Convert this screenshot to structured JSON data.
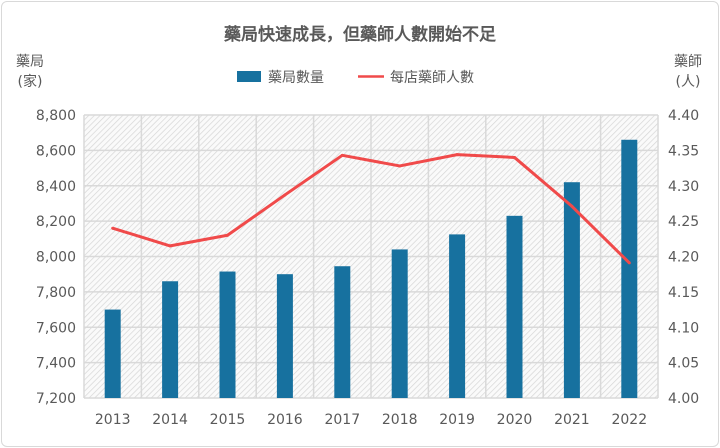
{
  "chart_data": {
    "type": "bar+line",
    "title": "藥局快速成長，但藥師人數開始不足",
    "categories": [
      "2013",
      "2014",
      "2015",
      "2016",
      "2017",
      "2018",
      "2019",
      "2020",
      "2021",
      "2022"
    ],
    "series": [
      {
        "name": "藥局數量",
        "type": "bar",
        "axis": "left",
        "color": "#17719f",
        "values": [
          7700,
          7860,
          7915,
          7900,
          7945,
          8040,
          8125,
          8230,
          8420,
          8660
        ]
      },
      {
        "name": "每店藥師人數",
        "type": "line",
        "axis": "right",
        "color": "#f04a4a",
        "values": [
          4.24,
          4.215,
          4.23,
          4.287,
          4.343,
          4.328,
          4.344,
          4.34,
          4.271,
          4.191
        ]
      }
    ],
    "y_left": {
      "label_line1": "藥局",
      "label_line2": "(家)",
      "range": [
        7200,
        8800
      ],
      "ticks": [
        "7,200",
        "7,400",
        "7,600",
        "7,800",
        "8,000",
        "8,200",
        "8,400",
        "8,600",
        "8,800"
      ]
    },
    "y_right": {
      "label_line1": "藥師",
      "label_line2": "(人)",
      "range": [
        4.0,
        4.4
      ],
      "ticks": [
        "4.00",
        "4.05",
        "4.10",
        "4.15",
        "4.20",
        "4.25",
        "4.30",
        "4.35",
        "4.40"
      ]
    },
    "grid": true,
    "legend": "top-center"
  }
}
